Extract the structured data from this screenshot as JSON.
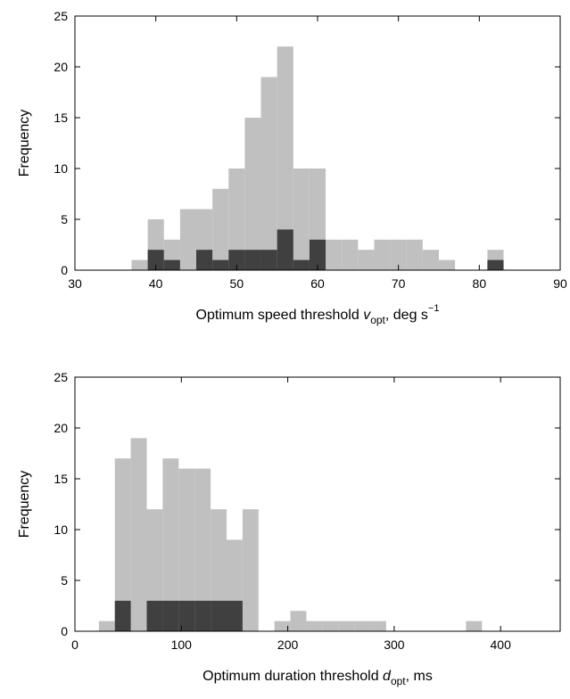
{
  "chart_data": [
    {
      "type": "histogram",
      "ylabel": "Frequency",
      "xlabel": [
        "Optimum speed threshold ",
        "v",
        "opt",
        ", deg s",
        "−1"
      ],
      "bins": [
        37,
        39,
        41,
        43,
        45,
        47,
        49,
        51,
        53,
        55,
        57,
        59,
        61,
        63,
        65,
        67,
        69,
        71,
        73,
        75,
        77,
        79,
        81,
        83
      ],
      "series": [
        {
          "color": "#c0c0c0",
          "values": [
            1,
            5,
            3,
            6,
            6,
            8,
            10,
            15,
            19,
            22,
            10,
            10,
            3,
            3,
            2,
            3,
            3,
            3,
            2,
            1,
            0,
            0,
            2
          ]
        },
        {
          "color": "#404040",
          "values": [
            0,
            2,
            1,
            0,
            2,
            1,
            2,
            2,
            2,
            4,
            1,
            3,
            0,
            0,
            0,
            0,
            0,
            0,
            0,
            0,
            0,
            0,
            1
          ]
        }
      ],
      "xlim": [
        30,
        90
      ],
      "xticks": [
        30,
        40,
        50,
        60,
        70,
        80,
        90
      ],
      "ylim": [
        0,
        25
      ],
      "yticks": [
        0,
        5,
        10,
        15,
        20,
        25
      ]
    },
    {
      "type": "histogram",
      "ylabel": "Frequency",
      "xlabel": [
        "Optimum duration threshold ",
        "d",
        "opt",
        ", ms"
      ],
      "bins": [
        22.5,
        37.5,
        52.5,
        67.5,
        82.5,
        97.5,
        112.5,
        127.5,
        142.5,
        157.5,
        172.5,
        187.5,
        202.5,
        217.5,
        232.5,
        247.5,
        262.5,
        277.5,
        292.5,
        307.5,
        322.5,
        337.5,
        352.5,
        367.5,
        382.5
      ],
      "series": [
        {
          "color": "#c0c0c0",
          "values": [
            1,
            17,
            19,
            12,
            17,
            16,
            16,
            12,
            9,
            12,
            0,
            1,
            2,
            1,
            1,
            1,
            1,
            1,
            0,
            0,
            0,
            0,
            0,
            1
          ]
        },
        {
          "color": "#404040",
          "values": [
            0,
            3,
            0,
            3,
            3,
            3,
            3,
            3,
            3,
            0,
            0,
            0,
            0,
            0,
            0,
            0,
            0,
            0,
            0,
            0,
            0,
            0,
            0,
            0
          ]
        }
      ],
      "xlim": [
        0,
        456
      ],
      "xticks": [
        0,
        100,
        200,
        300,
        400
      ],
      "ylim": [
        0,
        25
      ],
      "yticks": [
        0,
        5,
        10,
        15,
        20,
        25
      ]
    }
  ]
}
